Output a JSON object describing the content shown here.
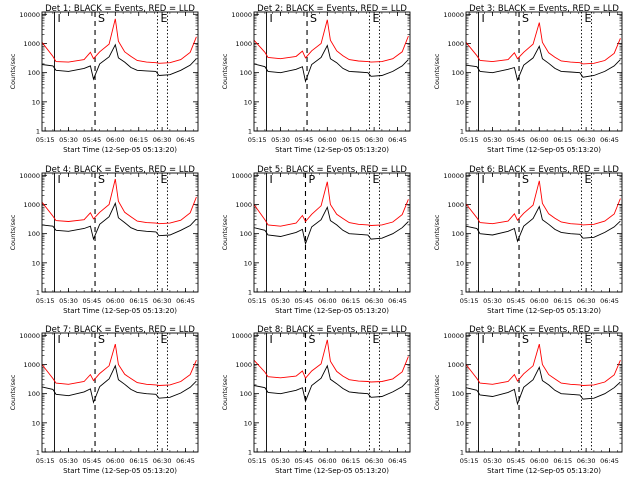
{
  "figure": {
    "x_tick_labels": [
      "05:15",
      "05:30",
      "05:45",
      "06:00",
      "06:15",
      "06:30",
      "06:45"
    ],
    "y_tick_labels": [
      "1",
      "10",
      "100",
      "1000",
      "10000"
    ],
    "xlabel": "Start Time (12-Sep-05 05:13:20)",
    "ylabel": "Counts/sec",
    "marker_labels": {
      "i": "I",
      "s": "S",
      "e": "E"
    },
    "colors": {
      "events": "#000000",
      "lld": "#ff0000"
    }
  },
  "chart_data": [
    {
      "type": "line",
      "title": "Det 1: BLACK = Events, RED = LLD",
      "xlabel": "Start Time (12-Sep-05 05:13:20)",
      "ylabel": "Counts/sec",
      "y_scale": "log",
      "ylim": [
        1,
        12000
      ],
      "xlim": [
        "05:13",
        "06:53"
      ],
      "grid": false,
      "markers": {
        "I": "05:21",
        "S": "05:47",
        "E": "06:27"
      },
      "x": [
        "05:13",
        "05:20",
        "05:22",
        "05:30",
        "05:40",
        "05:44",
        "05:46",
        "05:50",
        "05:56",
        "06:00",
        "06:02",
        "06:06",
        "06:10",
        "06:14",
        "06:20",
        "06:26",
        "06:28",
        "06:35",
        "06:42",
        "06:48",
        "06:52"
      ],
      "series": [
        {
          "name": "Events",
          "values": [
            190,
            170,
            120,
            110,
            140,
            170,
            60,
            200,
            350,
            900,
            320,
            230,
            150,
            120,
            115,
            110,
            80,
            85,
            120,
            180,
            300
          ]
        },
        {
          "name": "LLD",
          "values": [
            1100,
            360,
            240,
            230,
            280,
            500,
            300,
            520,
            950,
            7000,
            1200,
            520,
            360,
            260,
            230,
            220,
            210,
            220,
            280,
            500,
            1700
          ]
        }
      ]
    },
    {
      "type": "line",
      "title": "Det 2: BLACK = Events, RED = LLD",
      "xlabel": "Start Time (12-Sep-05 05:13:20)",
      "ylabel": "Counts/sec",
      "y_scale": "log",
      "ylim": [
        1,
        12000
      ],
      "xlim": [
        "05:13",
        "06:53"
      ],
      "grid": false,
      "markers": {
        "I": "05:21",
        "S": "05:47",
        "E": "06:27"
      },
      "x": [
        "05:13",
        "05:20",
        "05:22",
        "05:30",
        "05:40",
        "05:44",
        "05:46",
        "05:50",
        "05:56",
        "06:00",
        "06:02",
        "06:06",
        "06:10",
        "06:14",
        "06:20",
        "06:26",
        "06:28",
        "06:35",
        "06:42",
        "06:48",
        "06:52"
      ],
      "series": [
        {
          "name": "Events",
          "values": [
            200,
            160,
            110,
            100,
            130,
            160,
            50,
            190,
            330,
            850,
            300,
            220,
            140,
            110,
            105,
            100,
            75,
            80,
            110,
            170,
            280
          ]
        },
        {
          "name": "LLD",
          "values": [
            1300,
            500,
            330,
            300,
            360,
            550,
            320,
            560,
            1000,
            6500,
            1300,
            560,
            380,
            280,
            250,
            240,
            230,
            240,
            300,
            520,
            1800
          ]
        }
      ]
    },
    {
      "type": "line",
      "title": "Det 3: BLACK = Events, RED = LLD",
      "xlabel": "Start Time (12-Sep-05 05:13:20)",
      "ylabel": "Counts/sec",
      "y_scale": "log",
      "ylim": [
        1,
        12000
      ],
      "xlim": [
        "05:13",
        "06:53"
      ],
      "grid": false,
      "markers": {
        "I": "05:21",
        "S": "05:47",
        "E": "06:27"
      },
      "x": [
        "05:13",
        "05:20",
        "05:22",
        "05:30",
        "05:40",
        "05:44",
        "05:46",
        "05:50",
        "05:56",
        "06:00",
        "06:02",
        "06:06",
        "06:10",
        "06:14",
        "06:20",
        "06:26",
        "06:28",
        "06:35",
        "06:42",
        "06:48",
        "06:52"
      ],
      "series": [
        {
          "name": "Events",
          "values": [
            180,
            160,
            110,
            100,
            130,
            150,
            55,
            180,
            320,
            800,
            300,
            210,
            140,
            110,
            105,
            100,
            70,
            80,
            110,
            170,
            280
          ]
        },
        {
          "name": "LLD",
          "values": [
            1100,
            380,
            260,
            240,
            280,
            480,
            300,
            500,
            950,
            5200,
            1100,
            480,
            340,
            250,
            230,
            220,
            200,
            210,
            260,
            460,
            1500
          ]
        }
      ]
    },
    {
      "type": "line",
      "title": "Det 4: BLACK = Events, RED = LLD",
      "xlabel": "Start Time (12-Sep-05 05:13:20)",
      "ylabel": "Counts/sec",
      "y_scale": "log",
      "ylim": [
        1,
        12000
      ],
      "xlim": [
        "05:13",
        "06:53"
      ],
      "grid": false,
      "markers": {
        "I": "05:21",
        "S": "05:47",
        "E": "06:27"
      },
      "x": [
        "05:13",
        "05:20",
        "05:22",
        "05:30",
        "05:40",
        "05:44",
        "05:46",
        "05:50",
        "05:56",
        "06:00",
        "06:02",
        "06:06",
        "06:10",
        "06:14",
        "06:20",
        "06:26",
        "06:28",
        "06:35",
        "06:42",
        "06:48",
        "06:52"
      ],
      "series": [
        {
          "name": "Events",
          "values": [
            200,
            180,
            130,
            120,
            150,
            180,
            65,
            210,
            380,
            1100,
            350,
            240,
            160,
            130,
            120,
            115,
            85,
            90,
            130,
            190,
            320
          ]
        },
        {
          "name": "LLD",
          "values": [
            1200,
            400,
            280,
            260,
            300,
            520,
            320,
            540,
            1000,
            7500,
            1300,
            540,
            380,
            270,
            240,
            230,
            220,
            230,
            290,
            520,
            1800
          ]
        }
      ]
    },
    {
      "type": "line",
      "title": "Det 5: BLACK = Events, RED = LLD",
      "xlabel": "Start Time (12-Sep-05 05:13:20)",
      "ylabel": "Counts/sec",
      "y_scale": "log",
      "ylim": [
        1,
        12000
      ],
      "xlim": [
        "05:13",
        "06:53"
      ],
      "grid": false,
      "markers": {
        "I": "05:21",
        "P": "05:46",
        "E": "06:27"
      },
      "x": [
        "05:13",
        "05:20",
        "05:22",
        "05:30",
        "05:40",
        "05:44",
        "05:46",
        "05:50",
        "05:56",
        "06:00",
        "06:02",
        "06:06",
        "06:10",
        "06:14",
        "06:20",
        "06:26",
        "06:28",
        "06:35",
        "06:42",
        "06:48",
        "06:52"
      ],
      "series": [
        {
          "name": "Events",
          "values": [
            160,
            130,
            90,
            80,
            110,
            140,
            45,
            170,
            300,
            800,
            280,
            200,
            130,
            100,
            95,
            90,
            65,
            70,
            100,
            160,
            260
          ]
        },
        {
          "name": "LLD",
          "values": [
            1000,
            300,
            200,
            180,
            230,
            420,
            260,
            460,
            900,
            6000,
            1000,
            460,
            330,
            240,
            210,
            200,
            190,
            200,
            250,
            450,
            1500
          ]
        }
      ]
    },
    {
      "type": "line",
      "title": "Det 6: BLACK = Events, RED = LLD",
      "xlabel": "Start Time (12-Sep-05 05:13:20)",
      "ylabel": "Counts/sec",
      "y_scale": "log",
      "ylim": [
        1,
        12000
      ],
      "xlim": [
        "05:13",
        "06:53"
      ],
      "grid": false,
      "markers": {
        "I": "05:21",
        "S": "05:47",
        "E": "06:27"
      },
      "x": [
        "05:13",
        "05:20",
        "05:22",
        "05:30",
        "05:40",
        "05:44",
        "05:46",
        "05:50",
        "05:56",
        "06:00",
        "06:02",
        "06:06",
        "06:10",
        "06:14",
        "06:20",
        "06:26",
        "06:28",
        "06:35",
        "06:42",
        "06:48",
        "06:52"
      ],
      "series": [
        {
          "name": "Events",
          "values": [
            180,
            150,
            100,
            90,
            120,
            150,
            55,
            180,
            330,
            850,
            300,
            210,
            140,
            110,
            100,
            95,
            70,
            75,
            110,
            170,
            270
          ]
        },
        {
          "name": "LLD",
          "values": [
            1050,
            350,
            240,
            220,
            270,
            480,
            290,
            500,
            950,
            6500,
            1100,
            480,
            340,
            250,
            220,
            210,
            200,
            210,
            270,
            470,
            1600
          ]
        }
      ]
    },
    {
      "type": "line",
      "title": "Det 7: BLACK = Events, RED = LLD",
      "xlabel": "Start Time (12-Sep-05 05:13:20)",
      "ylabel": "Counts/sec",
      "y_scale": "log",
      "ylim": [
        1,
        12000
      ],
      "xlim": [
        "05:13",
        "06:53"
      ],
      "grid": false,
      "markers": {
        "I": "05:21",
        "S": "05:47",
        "E": "06:27"
      },
      "x": [
        "05:13",
        "05:20",
        "05:22",
        "05:30",
        "05:40",
        "05:44",
        "05:46",
        "05:50",
        "05:56",
        "06:00",
        "06:02",
        "06:06",
        "06:10",
        "06:14",
        "06:20",
        "06:26",
        "06:28",
        "06:35",
        "06:42",
        "06:48",
        "06:52"
      ],
      "series": [
        {
          "name": "Events",
          "values": [
            170,
            140,
            95,
            85,
            115,
            145,
            50,
            175,
            320,
            900,
            300,
            210,
            140,
            110,
            100,
            95,
            70,
            75,
            105,
            165,
            270
          ]
        },
        {
          "name": "LLD",
          "values": [
            1000,
            330,
            230,
            210,
            260,
            450,
            280,
            490,
            900,
            5000,
            1000,
            460,
            330,
            240,
            210,
            200,
            190,
            200,
            260,
            450,
            1400
          ]
        }
      ]
    },
    {
      "type": "line",
      "title": "Det 8: BLACK = Events, RED = LLD",
      "xlabel": "Start Time (12-Sep-05 05:13:20)",
      "ylabel": "Counts/sec",
      "y_scale": "log",
      "ylim": [
        1,
        12000
      ],
      "xlim": [
        "05:13",
        "06:53"
      ],
      "grid": false,
      "markers": {
        "I": "05:21",
        "S": "05:46",
        "E": "06:27"
      },
      "x": [
        "05:13",
        "05:20",
        "05:22",
        "05:30",
        "05:40",
        "05:44",
        "05:46",
        "05:50",
        "05:56",
        "06:00",
        "06:02",
        "06:06",
        "06:10",
        "06:14",
        "06:20",
        "06:26",
        "06:28",
        "06:35",
        "06:42",
        "06:48",
        "06:52"
      ],
      "series": [
        {
          "name": "Events",
          "values": [
            190,
            160,
            110,
            100,
            130,
            160,
            55,
            190,
            340,
            900,
            310,
            220,
            150,
            115,
            105,
            100,
            75,
            80,
            115,
            175,
            290
          ]
        },
        {
          "name": "LLD",
          "values": [
            1400,
            550,
            380,
            350,
            400,
            600,
            340,
            600,
            1050,
            7000,
            1300,
            580,
            400,
            300,
            270,
            260,
            250,
            260,
            320,
            560,
            1900
          ]
        }
      ]
    },
    {
      "type": "line",
      "title": "Det 9: BLACK = Events, RED = LLD",
      "xlabel": "Start Time (12-Sep-05 05:13:20)",
      "ylabel": "Counts/sec",
      "y_scale": "log",
      "ylim": [
        1,
        12000
      ],
      "xlim": [
        "05:13",
        "06:53"
      ],
      "grid": false,
      "markers": {
        "I": "05:21",
        "S": "05:47",
        "E": "06:27"
      },
      "x": [
        "05:13",
        "05:20",
        "05:22",
        "05:30",
        "05:40",
        "05:44",
        "05:46",
        "05:50",
        "05:56",
        "06:00",
        "06:02",
        "06:06",
        "06:10",
        "06:14",
        "06:20",
        "06:26",
        "06:28",
        "06:35",
        "06:42",
        "06:48",
        "06:52"
      ],
      "series": [
        {
          "name": "Events",
          "values": [
            160,
            130,
            90,
            80,
            110,
            140,
            45,
            165,
            300,
            800,
            280,
            200,
            130,
            100,
            95,
            90,
            65,
            70,
            100,
            160,
            250
          ]
        },
        {
          "name": "LLD",
          "values": [
            1000,
            330,
            230,
            210,
            260,
            450,
            270,
            480,
            900,
            5000,
            1000,
            450,
            320,
            230,
            210,
            200,
            190,
            200,
            250,
            440,
            1400
          ]
        }
      ]
    }
  ]
}
